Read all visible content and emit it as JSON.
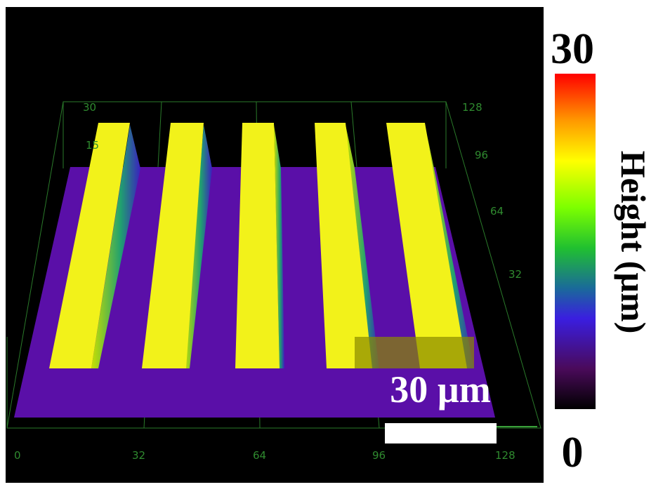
{
  "surface": {
    "z_axis_labels": [
      30,
      15
    ],
    "y_axis_labels": [
      128,
      96,
      64,
      32
    ],
    "x_axis_labels": [
      0,
      32,
      64,
      96,
      128
    ]
  },
  "scale_bar": {
    "label": "30 µm"
  },
  "colorbar": {
    "max": 30,
    "min": 0,
    "title": "Height (µm)"
  }
}
